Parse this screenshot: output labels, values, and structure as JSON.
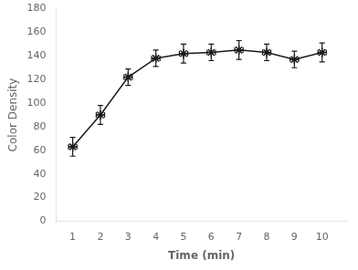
{
  "chart_data": {
    "type": "line",
    "xlabel": "Time (min)",
    "ylabel": "Color Density",
    "x": [
      1,
      2,
      3,
      4,
      5,
      6,
      7,
      8,
      9,
      10
    ],
    "values": [
      63,
      90,
      122,
      138,
      142,
      143,
      145,
      143,
      137,
      143
    ],
    "yerr": [
      8,
      8,
      7,
      7,
      8,
      7,
      8,
      7,
      7,
      8
    ],
    "xerr": [
      0.15,
      0.15,
      0.15,
      0.15,
      0.15,
      0.15,
      0.15,
      0.15,
      0.15,
      0.15
    ],
    "color": "#1a1a1a",
    "marker": "star",
    "xlim": [
      0.4,
      10.9
    ],
    "ylim": [
      0,
      180
    ],
    "xticks": [
      1,
      2,
      3,
      4,
      5,
      6,
      7,
      8,
      9,
      10
    ],
    "yticks": [
      0,
      20,
      40,
      60,
      80,
      100,
      120,
      140,
      160,
      180
    ],
    "grid": false
  }
}
